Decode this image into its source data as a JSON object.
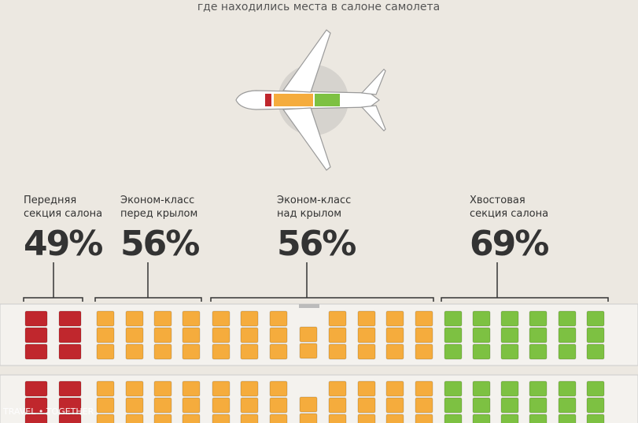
{
  "header": "где находились места в салоне самолета",
  "sections": [
    {
      "label": [
        "Передняя",
        "секция салона"
      ],
      "value": "49%"
    },
    {
      "label": [
        "Эконом-класс",
        "перед крылом"
      ],
      "value": "56%"
    },
    {
      "label": [
        "Эконом-класс",
        "над крылом"
      ],
      "value": "56%"
    },
    {
      "label": [
        "Хвостовая",
        "секция салона"
      ],
      "value": "69%"
    }
  ],
  "watermark": "TRAVEL • TOGETHER"
}
